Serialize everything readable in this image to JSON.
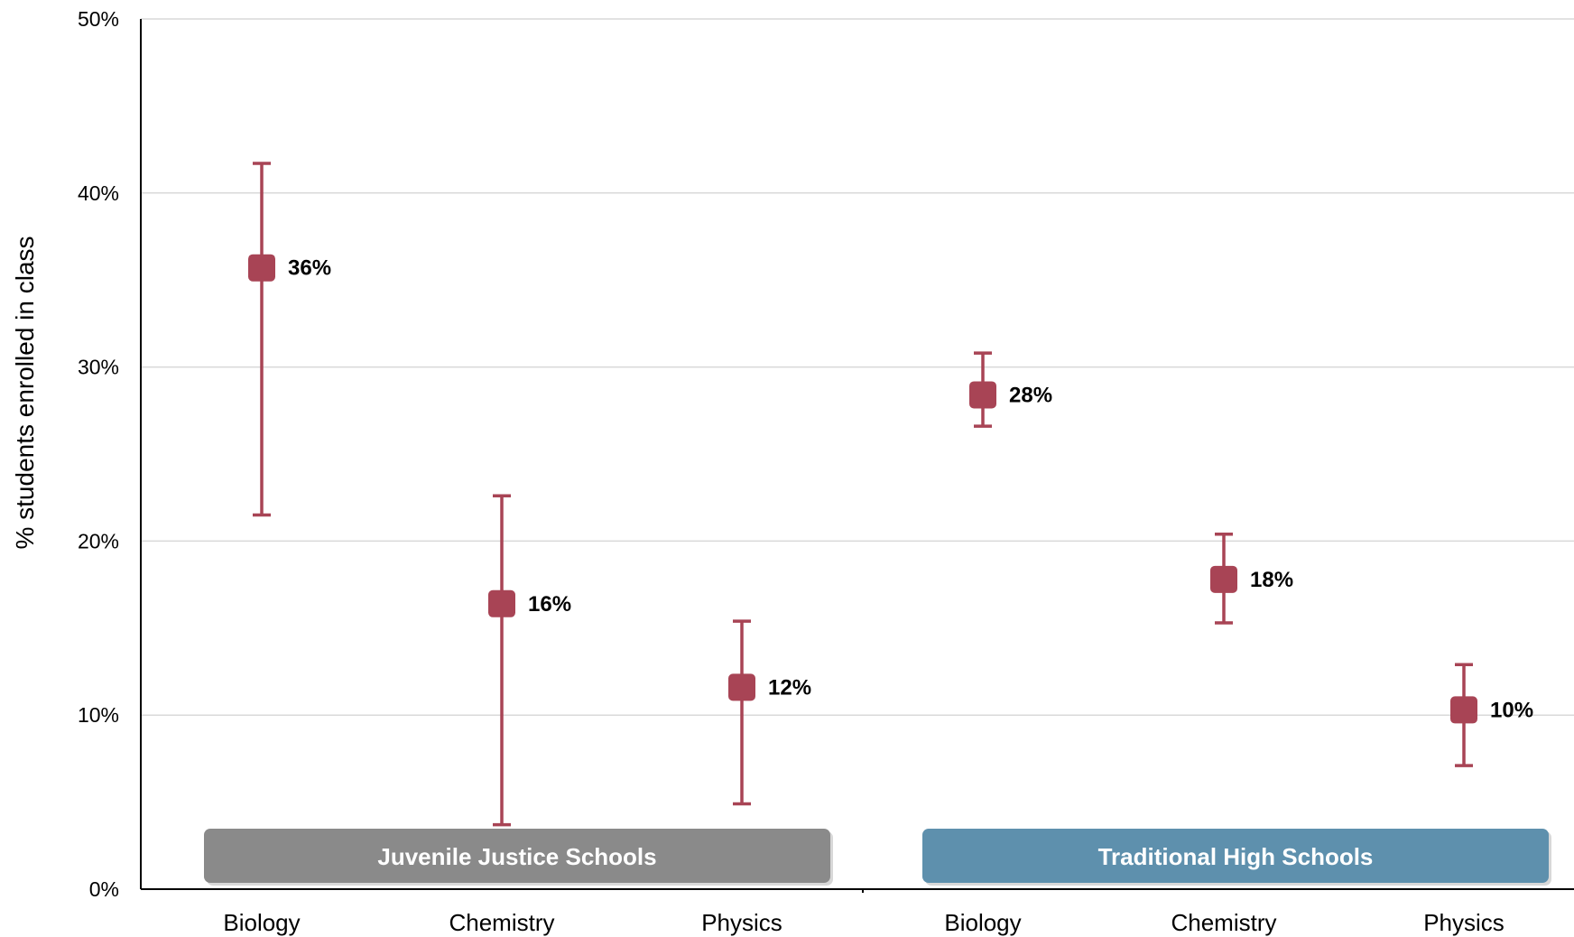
{
  "chart_data": {
    "type": "scatter",
    "ylabel": "% students enrolled in class",
    "ylim": [
      0,
      50
    ],
    "y_ticks": [
      "0%",
      "10%",
      "20%",
      "30%",
      "40%",
      "50%"
    ],
    "y_tick_values": [
      0,
      10,
      20,
      30,
      40,
      50
    ],
    "grid": true,
    "categories": [
      "Biology",
      "Chemistry",
      "Physics",
      "Biology",
      "Chemistry",
      "Physics"
    ],
    "groups": [
      {
        "label": "Juvenile Justice Schools",
        "color": "#8a8a8a",
        "category_indices": [
          0,
          1,
          2
        ]
      },
      {
        "label": "Traditional High Schools",
        "color": "#5e90ad",
        "category_indices": [
          3,
          4,
          5
        ]
      }
    ],
    "series": [
      {
        "values": [
          35.7,
          16.4,
          11.6,
          28.4,
          17.8,
          10.3
        ],
        "error_low": [
          21.5,
          3.7,
          4.9,
          26.6,
          15.3,
          7.1
        ],
        "error_high": [
          41.7,
          22.6,
          15.4,
          30.8,
          20.4,
          12.9
        ],
        "data_labels": [
          "36%",
          "16%",
          "12%",
          "28%",
          "18%",
          "10%"
        ],
        "color": "#a84455"
      }
    ]
  }
}
